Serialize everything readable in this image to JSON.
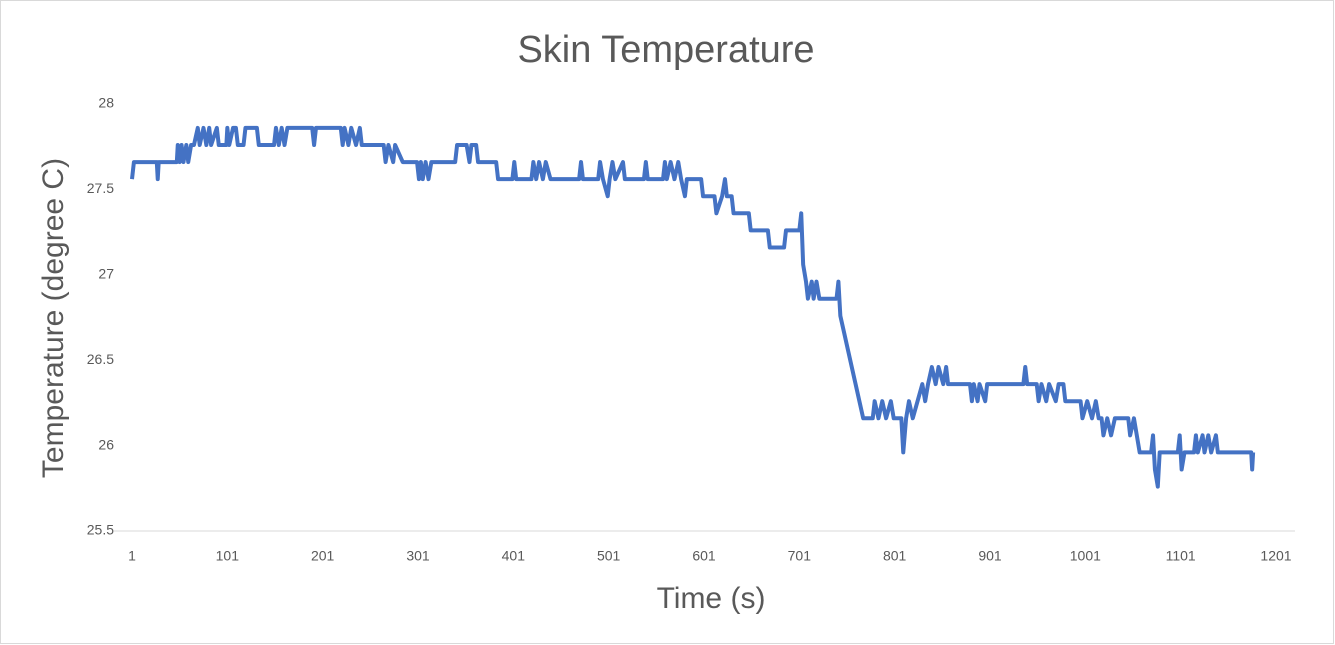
{
  "chart_data": {
    "type": "line",
    "title": "Skin Temperature",
    "x_label": "Time (s)",
    "y_label": "Temperature (degree C)",
    "x": [
      1,
      3,
      27,
      28,
      29,
      48,
      49,
      51,
      53,
      55,
      58,
      60,
      63,
      66,
      70,
      72,
      76,
      79,
      82,
      84,
      90,
      92,
      100,
      101,
      103,
      107,
      110,
      112,
      118,
      120,
      132,
      134,
      150,
      152,
      155,
      158,
      161,
      164,
      190,
      192,
      194,
      220,
      222,
      224,
      228,
      231,
      236,
      240,
      242,
      265,
      267,
      270,
      275,
      277,
      285,
      300,
      302,
      304,
      306,
      309,
      312,
      315,
      340,
      342,
      352,
      355,
      357,
      362,
      364,
      383,
      385,
      387,
      400,
      402,
      404,
      420,
      422,
      425,
      428,
      432,
      435,
      440,
      470,
      472,
      474,
      490,
      492,
      495,
      500,
      502,
      505,
      508,
      516,
      518,
      538,
      540,
      542,
      558,
      560,
      562,
      566,
      570,
      574,
      577,
      581,
      583,
      598,
      600,
      612,
      614,
      620,
      623,
      625,
      630,
      632,
      648,
      650,
      668,
      670,
      685,
      687,
      701,
      703,
      705,
      708,
      710,
      714,
      716,
      719,
      722,
      740,
      742,
      744,
      748,
      752,
      756,
      760,
      764,
      768,
      778,
      780,
      784,
      788,
      792,
      797,
      800,
      808,
      810,
      813,
      816,
      820,
      825,
      830,
      833,
      836,
      840,
      844,
      847,
      852,
      855,
      857,
      880,
      882,
      884,
      888,
      890,
      896,
      898,
      936,
      938,
      940,
      950,
      952,
      955,
      960,
      963,
      970,
      973,
      978,
      980,
      996,
      998,
      1003,
      1008,
      1012,
      1015,
      1018,
      1020,
      1024,
      1028,
      1032,
      1046,
      1048,
      1052,
      1058,
      1070,
      1072,
      1074,
      1077,
      1079,
      1098,
      1100,
      1102,
      1105,
      1115,
      1117,
      1119,
      1124,
      1126,
      1130,
      1133,
      1138,
      1140,
      1175,
      1176,
      1177
    ],
    "series": [
      {
        "name": "Temperature",
        "color": "#4472c4",
        "values": [
          27.56,
          27.66,
          27.66,
          27.56,
          27.66,
          27.66,
          27.76,
          27.66,
          27.76,
          27.66,
          27.76,
          27.66,
          27.76,
          27.76,
          27.86,
          27.76,
          27.86,
          27.76,
          27.86,
          27.76,
          27.86,
          27.76,
          27.76,
          27.86,
          27.76,
          27.86,
          27.86,
          27.76,
          27.76,
          27.86,
          27.86,
          27.76,
          27.76,
          27.86,
          27.76,
          27.86,
          27.76,
          27.86,
          27.86,
          27.76,
          27.86,
          27.86,
          27.76,
          27.86,
          27.76,
          27.86,
          27.76,
          27.86,
          27.76,
          27.76,
          27.66,
          27.76,
          27.66,
          27.76,
          27.66,
          27.66,
          27.56,
          27.66,
          27.56,
          27.66,
          27.56,
          27.66,
          27.66,
          27.76,
          27.76,
          27.66,
          27.76,
          27.76,
          27.66,
          27.66,
          27.56,
          27.56,
          27.56,
          27.66,
          27.56,
          27.56,
          27.66,
          27.56,
          27.66,
          27.56,
          27.66,
          27.56,
          27.56,
          27.66,
          27.56,
          27.56,
          27.66,
          27.56,
          27.46,
          27.56,
          27.66,
          27.56,
          27.66,
          27.56,
          27.56,
          27.66,
          27.56,
          27.56,
          27.66,
          27.56,
          27.66,
          27.56,
          27.66,
          27.56,
          27.46,
          27.56,
          27.56,
          27.46,
          27.46,
          27.36,
          27.46,
          27.56,
          27.46,
          27.46,
          27.36,
          27.36,
          27.26,
          27.26,
          27.16,
          27.16,
          27.26,
          27.26,
          27.36,
          27.06,
          26.96,
          26.86,
          26.96,
          26.86,
          26.96,
          26.86,
          26.86,
          26.96,
          26.76,
          26.66,
          26.56,
          26.46,
          26.36,
          26.26,
          26.16,
          26.16,
          26.26,
          26.16,
          26.26,
          26.16,
          26.26,
          26.16,
          26.16,
          25.96,
          26.16,
          26.26,
          26.16,
          26.26,
          26.36,
          26.26,
          26.36,
          26.46,
          26.36,
          26.46,
          26.36,
          26.46,
          26.36,
          26.36,
          26.26,
          26.36,
          26.26,
          26.36,
          26.26,
          26.36,
          26.36,
          26.46,
          26.36,
          26.36,
          26.26,
          26.36,
          26.26,
          26.36,
          26.26,
          26.36,
          26.36,
          26.26,
          26.26,
          26.16,
          26.26,
          26.16,
          26.26,
          26.16,
          26.16,
          26.06,
          26.16,
          26.06,
          26.16,
          26.16,
          26.06,
          26.16,
          25.96,
          25.96,
          26.06,
          25.86,
          25.76,
          25.96,
          25.96,
          26.06,
          25.86,
          25.96,
          25.96,
          26.06,
          25.96,
          26.06,
          25.96,
          26.06,
          25.96,
          26.06,
          25.96,
          25.96,
          25.86,
          25.96
        ]
      }
    ],
    "xlim": [
      1,
      1201
    ],
    "xticks": [
      1,
      101,
      201,
      301,
      401,
      501,
      601,
      701,
      801,
      901,
      1001,
      1101,
      1201
    ],
    "ylim": [
      25.5,
      28
    ],
    "yticks": [
      25.5,
      26,
      26.5,
      27,
      27.5,
      28
    ],
    "grid": false
  }
}
